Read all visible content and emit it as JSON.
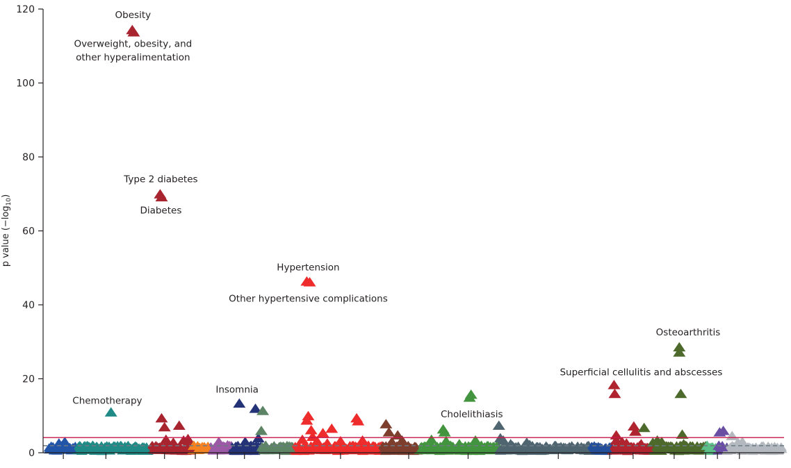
{
  "chart_data": {
    "type": "scatter",
    "title": "",
    "xlabel": "",
    "ylabel": "p value (−log",
    "ylabel_sub": "10",
    "ylabel_close": ")",
    "ylim": [
      0,
      120
    ],
    "yticks": [
      0,
      20,
      40,
      60,
      80,
      100,
      120
    ],
    "xlim": [
      0,
      1000
    ],
    "grid": false,
    "legend": "none",
    "marker": "triangle-up",
    "thresholds": [
      {
        "name": "significance-line",
        "value": 4.1,
        "color": "#c8174a",
        "style": "solid"
      },
      {
        "name": "nominal-line",
        "value": 1.9,
        "color": "#6d7b84",
        "style": "dashed"
      }
    ],
    "xticks": [
      20,
      78,
      158,
      200,
      230,
      267,
      315,
      398,
      491,
      572,
      695,
      765,
      797,
      853,
      896,
      912,
      942
    ],
    "categories": [
      {
        "name": "group-01",
        "color": "#2255a8",
        "x_range": [
          0,
          38
        ],
        "points": [
          [
            14,
            2.4
          ],
          [
            18,
            1.6
          ],
          [
            22,
            2.8
          ],
          [
            26,
            1.2
          ],
          [
            30,
            0.9
          ],
          [
            10,
            1.0
          ]
        ]
      },
      {
        "name": "group-02",
        "color": "#1f8a86",
        "x_range": [
          38,
          140
        ],
        "points": [
          [
            60,
            1.8
          ],
          [
            66,
            1.4
          ],
          [
            72,
            1.6
          ],
          [
            85,
            10.8
          ],
          [
            95,
            1.2
          ],
          [
            104,
            1.5
          ],
          [
            112,
            1.0
          ],
          [
            120,
            1.4
          ],
          [
            130,
            1.3
          ],
          [
            48,
            1.5
          ],
          [
            54,
            1.1
          ]
        ]
      },
      {
        "name": "group-03",
        "color": "#a8242f",
        "x_range": [
          140,
          196
        ],
        "points": [
          [
            154,
            9.2
          ],
          [
            158,
            6.8
          ],
          [
            160,
            3.4
          ],
          [
            164,
            1.8
          ],
          [
            178,
            7.2
          ],
          [
            184,
            3.2
          ],
          [
            190,
            3.6
          ],
          [
            148,
            1.4
          ],
          [
            170,
            2.6
          ],
          [
            196,
            1.2
          ],
          [
            114,
            114.2
          ],
          [
            116,
            113.6
          ],
          [
            152,
            69.8
          ],
          [
            154,
            69.0
          ]
        ]
      },
      {
        "name": "group-04",
        "color": "#f58220",
        "x_range": [
          196,
          220
        ],
        "points": [
          [
            198,
            1.8
          ],
          [
            206,
            1.2
          ],
          [
            212,
            1.4
          ],
          [
            217,
            1.0
          ]
        ]
      },
      {
        "name": "group-05",
        "color": "#9b59a6",
        "x_range": [
          220,
          250
        ],
        "points": [
          [
            232,
            2.8
          ],
          [
            238,
            1.6
          ],
          [
            244,
            1.9
          ],
          [
            226,
            1.1
          ]
        ]
      },
      {
        "name": "group-06",
        "color": "#243378",
        "x_range": [
          250,
          290
        ],
        "points": [
          [
            260,
            13.2
          ],
          [
            268,
            2.8
          ],
          [
            276,
            1.8
          ],
          [
            282,
            11.8
          ],
          [
            286,
            3.8
          ],
          [
            254,
            1.2
          ],
          [
            272,
            1.2
          ]
        ]
      },
      {
        "name": "group-07",
        "color": "#5e8466",
        "x_range": [
          290,
          335
        ],
        "points": [
          [
            292,
            11.2
          ],
          [
            290,
            5.8
          ],
          [
            296,
            1.8
          ],
          [
            304,
            1.2
          ],
          [
            318,
            1.4
          ],
          [
            328,
            1.2
          ]
        ]
      },
      {
        "name": "group-08",
        "color": "#ee2c2c",
        "x_range": [
          335,
          455
        ],
        "points": [
          [
            352,
            46.2
          ],
          [
            356,
            46.0
          ],
          [
            346,
            3.4
          ],
          [
            352,
            8.6
          ],
          [
            354,
            9.8
          ],
          [
            358,
            6.0
          ],
          [
            360,
            4.2
          ],
          [
            366,
            3.0
          ],
          [
            374,
            5.2
          ],
          [
            380,
            2.4
          ],
          [
            386,
            6.4
          ],
          [
            390,
            1.6
          ],
          [
            398,
            3.0
          ],
          [
            410,
            1.4
          ],
          [
            420,
            9.2
          ],
          [
            422,
            8.4
          ],
          [
            428,
            3.2
          ],
          [
            436,
            1.8
          ],
          [
            444,
            1.4
          ]
        ]
      },
      {
        "name": "group-09",
        "color": "#7d3e2e",
        "x_range": [
          455,
          505
        ],
        "points": [
          [
            460,
            7.6
          ],
          [
            464,
            5.4
          ],
          [
            468,
            2.8
          ],
          [
            476,
            4.6
          ],
          [
            482,
            3.2
          ],
          [
            490,
            1.6
          ],
          [
            500,
            1.2
          ],
          [
            470,
            1.4
          ]
        ]
      },
      {
        "name": "group-10",
        "color": "#43943f",
        "x_range": [
          505,
          615
        ],
        "points": [
          [
            522,
            3.4
          ],
          [
            538,
            6.2
          ],
          [
            540,
            5.4
          ],
          [
            542,
            3.0
          ],
          [
            560,
            2.2
          ],
          [
            574,
            14.8
          ],
          [
            576,
            15.6
          ],
          [
            582,
            3.2
          ],
          [
            590,
            1.8
          ],
          [
            600,
            1.4
          ],
          [
            530,
            1.2
          ],
          [
            548,
            1.8
          ],
          [
            510,
            1.2
          ]
        ]
      },
      {
        "name": "group-11",
        "color": "#4f6671",
        "x_range": [
          615,
          740
        ],
        "points": [
          [
            614,
            7.2
          ],
          [
            616,
            3.8
          ],
          [
            620,
            3.2
          ],
          [
            630,
            2.2
          ],
          [
            652,
            2.6
          ],
          [
            656,
            2.0
          ],
          [
            670,
            1.4
          ],
          [
            690,
            1.2
          ],
          [
            710,
            1.4
          ],
          [
            730,
            1.1
          ]
        ]
      },
      {
        "name": "group-12",
        "color": "#234e9a",
        "x_range": [
          740,
          768
        ],
        "points": [
          [
            746,
            1.0
          ],
          [
            752,
            1.2
          ],
          [
            760,
            1.1
          ]
        ]
      },
      {
        "name": "group-13",
        "color": "#b02430",
        "x_range": [
          768,
          825
        ],
        "points": [
          [
            771,
            18.2
          ],
          [
            772,
            15.8
          ],
          [
            774,
            4.6
          ],
          [
            774,
            3.2
          ],
          [
            782,
            2.8
          ],
          [
            788,
            2.4
          ],
          [
            798,
            7.0
          ],
          [
            800,
            5.6
          ],
          [
            808,
            2.2
          ],
          [
            786,
            1.4
          ],
          [
            816,
            1.2
          ]
        ]
      },
      {
        "name": "group-14",
        "color": "#4d6a2c",
        "x_range": [
          825,
          900
        ],
        "points": [
          [
            812,
            6.6
          ],
          [
            824,
            2.6
          ],
          [
            830,
            3.2
          ],
          [
            836,
            2.8
          ],
          [
            860,
            28.4
          ],
          [
            860,
            27.0
          ],
          [
            862,
            15.8
          ],
          [
            864,
            4.8
          ],
          [
            866,
            2.2
          ],
          [
            846,
            1.4
          ],
          [
            870,
            1.6
          ]
        ]
      },
      {
        "name": "group-15",
        "color": "#5cbf87",
        "x_range": [
          900,
          912
        ],
        "points": [
          [
            898,
            1.8
          ],
          [
            902,
            1.2
          ]
        ]
      },
      {
        "name": "group-16",
        "color": "#6a4ea3",
        "x_range": [
          912,
          925
        ],
        "points": [
          [
            915,
            5.4
          ],
          [
            920,
            5.8
          ],
          [
            914,
            1.8
          ],
          [
            918,
            1.4
          ]
        ]
      },
      {
        "name": "group-17",
        "color": "#b3b9bf",
        "x_range": [
          925,
          1000
        ],
        "points": [
          [
            932,
            4.4
          ],
          [
            940,
            2.6
          ],
          [
            946,
            2.8
          ],
          [
            950,
            1.6
          ],
          [
            936,
            1.4
          ],
          [
            956,
            1.2
          ]
        ]
      }
    ],
    "annotations": [
      {
        "text": "Obesity",
        "x": 115,
        "y": 117.6,
        "anchor": "middle"
      },
      {
        "text": "Overweight, obesity, and",
        "x": 115,
        "y": 109.8,
        "anchor": "middle"
      },
      {
        "text": "other hyperalimentation",
        "x": 115,
        "y": 106.1,
        "anchor": "middle"
      },
      {
        "text": "Type 2 diabetes",
        "x": 153,
        "y": 73.1,
        "anchor": "middle"
      },
      {
        "text": "Diabetes",
        "x": 153,
        "y": 64.7,
        "anchor": "middle"
      },
      {
        "text": "Hypertension",
        "x": 354,
        "y": 49.3,
        "anchor": "middle"
      },
      {
        "text": "Other hypertensive complications",
        "x": 354,
        "y": 40.8,
        "anchor": "middle"
      },
      {
        "text": "Chemotherapy",
        "x": 80,
        "y": 13.2,
        "anchor": "middle"
      },
      {
        "text": "Insomnia",
        "x": 257,
        "y": 16.2,
        "anchor": "middle"
      },
      {
        "text": "Cholelithiasis",
        "x": 577,
        "y": 9.6,
        "anchor": "middle"
      },
      {
        "text": "Superficial cellulitis and abscesses",
        "x": 808,
        "y": 20.9,
        "anchor": "middle"
      },
      {
        "text": "Osteoarthritis",
        "x": 872,
        "y": 31.7,
        "anchor": "middle"
      }
    ]
  }
}
